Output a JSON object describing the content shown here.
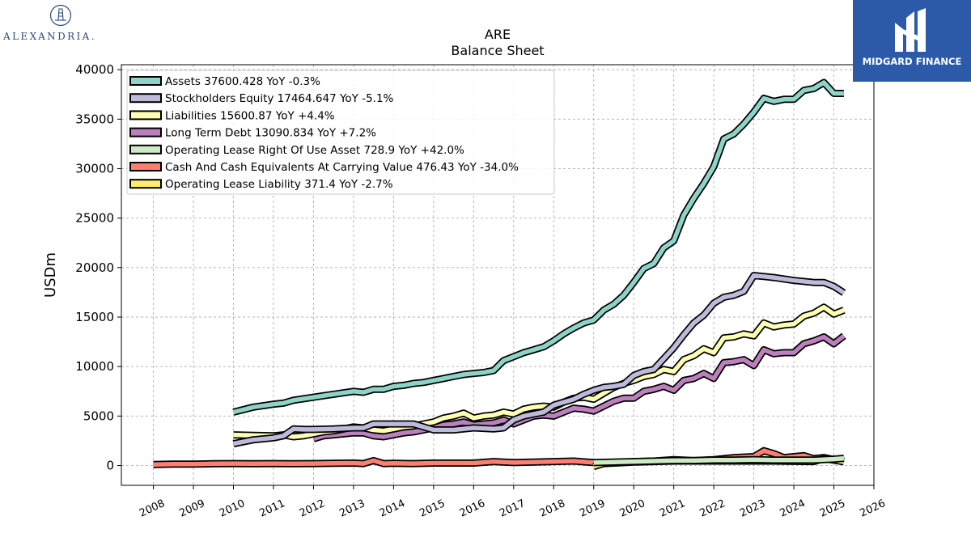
{
  "logos": {
    "left_text": "ALEXANDRIA.",
    "right_text": "MIDGARD FINANCE",
    "right_bg": "#2c5aa8"
  },
  "chart_data": {
    "type": "line",
    "title": "ARE",
    "subtitle": "Balance  Sheet",
    "xlabel": "",
    "ylabel": "USDm",
    "xlim": [
      2007.2,
      2026.0
    ],
    "ylim": [
      -2000,
      40500
    ],
    "xticks": [
      2008,
      2009,
      2010,
      2011,
      2012,
      2013,
      2014,
      2015,
      2016,
      2017,
      2018,
      2019,
      2020,
      2021,
      2022,
      2023,
      2024,
      2025,
      2026
    ],
    "yticks": [
      0,
      5000,
      10000,
      15000,
      20000,
      25000,
      30000,
      35000,
      40000
    ],
    "grid": true,
    "legend_position": "top-left",
    "series": [
      {
        "name": "Cash And Cash Equivalents At Carrying Value  476.43 YoY -34.0%",
        "color": "#fb8072",
        "x": [
          2008.0,
          2008.5,
          2009.0,
          2009.5,
          2010.0,
          2010.5,
          2011.0,
          2011.5,
          2012.0,
          2012.5,
          2013.0,
          2013.25,
          2013.5,
          2013.75,
          2014.0,
          2014.5,
          2015.0,
          2015.5,
          2016.0,
          2016.5,
          2017.0,
          2017.5,
          2018.0,
          2018.5,
          2019.0,
          2019.5,
          2020.0,
          2020.5,
          2021.0,
          2021.5,
          2022.0,
          2022.5,
          2023.0,
          2023.25,
          2023.5,
          2023.75,
          2024.0,
          2024.25,
          2024.5,
          2024.75,
          2025.0,
          2025.25
        ],
        "values": [
          100,
          150,
          150,
          180,
          200,
          180,
          200,
          180,
          200,
          220,
          250,
          200,
          500,
          200,
          220,
          200,
          250,
          250,
          250,
          400,
          300,
          350,
          400,
          450,
          300,
          250,
          400,
          450,
          600,
          500,
          600,
          800,
          900,
          1500,
          1200,
          800,
          900,
          1000,
          700,
          800,
          600,
          480
        ]
      },
      {
        "name": "Operating Lease Liability  371.4 YoY -2.7%",
        "color": "#ffed6f",
        "x": [
          2019.0,
          2019.25,
          2019.5,
          2019.75,
          2020.0,
          2020.5,
          2021.0,
          2021.5,
          2022.0,
          2022.5,
          2023.0,
          2023.5,
          2024.0,
          2024.5,
          2024.75,
          2025.0,
          2025.25
        ],
        "values": [
          -100,
          200,
          250,
          300,
          350,
          400,
          450,
          450,
          450,
          450,
          450,
          450,
          420,
          400,
          700,
          550,
          370
        ]
      },
      {
        "name": "Operating Lease Right Of Use Asset  728.9 YoY +42.0%",
        "color": "#ccebc5",
        "x": [
          2019.0,
          2019.5,
          2020.0,
          2020.5,
          2021.0,
          2021.5,
          2022.0,
          2022.5,
          2023.0,
          2023.5,
          2024.0,
          2024.5,
          2025.0,
          2025.25
        ],
        "values": [
          300,
          350,
          400,
          450,
          500,
          500,
          550,
          550,
          600,
          550,
          550,
          550,
          650,
          730
        ]
      },
      {
        "name": "Long Term Debt  13090.834 YoY +7.2%",
        "color": "#bc80bd",
        "x": [
          2012.0,
          2012.25,
          2012.5,
          2012.75,
          2013.0,
          2013.25,
          2013.5,
          2013.75,
          2014.0,
          2014.25,
          2014.5,
          2014.75,
          2015.0,
          2015.25,
          2015.5,
          2015.75,
          2016.0,
          2016.25,
          2016.5,
          2016.75,
          2017.0,
          2017.25,
          2017.5,
          2017.75,
          2018.0,
          2018.25,
          2018.5,
          2018.75,
          2019.0,
          2019.25,
          2019.5,
          2019.75,
          2020.0,
          2020.25,
          2020.5,
          2020.75,
          2021.0,
          2021.25,
          2021.5,
          2021.75,
          2022.0,
          2022.25,
          2022.5,
          2022.75,
          2023.0,
          2023.25,
          2023.5,
          2023.75,
          2024.0,
          2024.25,
          2024.5,
          2024.75,
          2025.0,
          2025.25
        ],
        "values": [
          2700,
          3000,
          3100,
          3200,
          3300,
          3300,
          3000,
          2900,
          3100,
          3300,
          3400,
          3600,
          3800,
          4100,
          4200,
          4400,
          4100,
          4200,
          4300,
          4600,
          4200,
          4600,
          5000,
          5100,
          5000,
          5400,
          5800,
          5700,
          5500,
          6000,
          6500,
          6800,
          6800,
          7500,
          7700,
          8000,
          7600,
          8600,
          8800,
          9300,
          8800,
          10400,
          10500,
          10700,
          10100,
          11700,
          11300,
          11400,
          11400,
          12300,
          12600,
          13000,
          12300,
          13100
        ]
      },
      {
        "name": "Liabilities  15600.87 YoY +4.4%",
        "color": "#ffffb3",
        "x": [
          2010.0,
          2010.5,
          2011.0,
          2011.25,
          2011.5,
          2011.75,
          2012.0,
          2012.25,
          2012.5,
          2012.75,
          2013.0,
          2013.25,
          2013.5,
          2013.75,
          2014.0,
          2014.25,
          2014.5,
          2014.75,
          2015.0,
          2015.25,
          2015.5,
          2015.75,
          2016.0,
          2016.25,
          2016.5,
          2016.75,
          2017.0,
          2017.25,
          2017.5,
          2017.75,
          2018.0,
          2018.25,
          2018.5,
          2018.75,
          2019.0,
          2019.25,
          2019.5,
          2019.75,
          2020.0,
          2020.25,
          2020.5,
          2020.75,
          2021.0,
          2021.25,
          2021.5,
          2021.75,
          2022.0,
          2022.25,
          2022.5,
          2022.75,
          2023.0,
          2023.25,
          2023.5,
          2023.75,
          2024.0,
          2024.25,
          2024.5,
          2024.75,
          2025.0,
          2025.25
        ],
        "values": [
          3100,
          3050,
          3000,
          3100,
          2900,
          3000,
          3200,
          3400,
          3500,
          3700,
          3900,
          3800,
          3600,
          3500,
          3700,
          3900,
          4000,
          4200,
          4400,
          4800,
          5000,
          5300,
          4800,
          5000,
          5100,
          5400,
          5200,
          5700,
          5900,
          6000,
          5900,
          6400,
          6800,
          6900,
          6700,
          7300,
          7900,
          8300,
          8600,
          9000,
          9200,
          9700,
          9500,
          10700,
          11100,
          11800,
          11400,
          12900,
          13000,
          13300,
          13100,
          14400,
          14000,
          14200,
          14300,
          15100,
          15400,
          16000,
          15300,
          15700
        ]
      },
      {
        "name": "Stockholders Equity  17464.647 YoY -5.1%",
        "color": "#bebada",
        "x": [
          2010.0,
          2010.5,
          2011.0,
          2011.25,
          2011.5,
          2011.75,
          2012.0,
          2012.5,
          2013.0,
          2013.25,
          2013.5,
          2014.0,
          2014.5,
          2015.0,
          2015.5,
          2016.0,
          2016.5,
          2016.75,
          2017.0,
          2017.25,
          2017.5,
          2017.75,
          2018.0,
          2018.25,
          2018.5,
          2018.75,
          2019.0,
          2019.25,
          2019.5,
          2019.75,
          2020.0,
          2020.25,
          2020.5,
          2020.75,
          2021.0,
          2021.25,
          2021.5,
          2021.75,
          2022.0,
          2022.25,
          2022.5,
          2022.75,
          2023.0,
          2023.25,
          2023.5,
          2024.0,
          2024.5,
          2024.75,
          2025.0,
          2025.25
        ],
        "values": [
          2200,
          2600,
          2800,
          3000,
          3700,
          3650,
          3650,
          3700,
          3800,
          3800,
          4200,
          4200,
          4200,
          3600,
          3600,
          3800,
          3700,
          3800,
          4600,
          5000,
          5200,
          5400,
          6100,
          6400,
          6700,
          7200,
          7600,
          7900,
          8000,
          8200,
          9100,
          9500,
          9700,
          10800,
          11900,
          13200,
          14400,
          15200,
          16400,
          17000,
          17200,
          17600,
          19200,
          19100,
          19000,
          18700,
          18500,
          18500,
          18100,
          17460
        ]
      },
      {
        "name": "Assets  37600.428 YoY -0.3%",
        "color": "#8dd3c7",
        "x": [
          2010.0,
          2010.5,
          2011.0,
          2011.25,
          2011.5,
          2012.0,
          2012.5,
          2013.0,
          2013.25,
          2013.5,
          2013.75,
          2014.0,
          2014.25,
          2014.5,
          2014.75,
          2015.0,
          2015.25,
          2015.5,
          2015.75,
          2016.0,
          2016.25,
          2016.5,
          2016.75,
          2017.0,
          2017.25,
          2017.5,
          2017.75,
          2018.0,
          2018.25,
          2018.5,
          2018.75,
          2019.0,
          2019.25,
          2019.5,
          2019.75,
          2020.0,
          2020.25,
          2020.5,
          2020.75,
          2021.0,
          2021.25,
          2021.5,
          2021.75,
          2022.0,
          2022.25,
          2022.5,
          2022.75,
          2023.0,
          2023.25,
          2023.5,
          2023.75,
          2024.0,
          2024.25,
          2024.5,
          2024.75,
          2025.0,
          2025.25
        ],
        "values": [
          5400,
          5900,
          6200,
          6300,
          6600,
          6900,
          7200,
          7500,
          7400,
          7700,
          7700,
          8000,
          8100,
          8300,
          8400,
          8600,
          8800,
          9000,
          9200,
          9300,
          9400,
          9600,
          10600,
          11000,
          11400,
          11700,
          12000,
          12600,
          13300,
          13900,
          14400,
          14700,
          15700,
          16300,
          17200,
          18500,
          19900,
          20400,
          22000,
          22700,
          25300,
          27000,
          28500,
          30200,
          33000,
          33500,
          34500,
          35700,
          37100,
          36800,
          37000,
          37000,
          37900,
          38100,
          38700,
          37600,
          37600
        ]
      }
    ],
    "legend_order": [
      "Assets  37600.428 YoY -0.3%",
      "Stockholders Equity  17464.647 YoY -5.1%",
      "Liabilities  15600.87 YoY +4.4%",
      "Long Term Debt  13090.834 YoY +7.2%",
      "Operating Lease Right Of Use Asset  728.9 YoY +42.0%",
      "Cash And Cash Equivalents At Carrying Value  476.43 YoY -34.0%",
      "Operating Lease Liability  371.4 YoY -2.7%"
    ]
  }
}
